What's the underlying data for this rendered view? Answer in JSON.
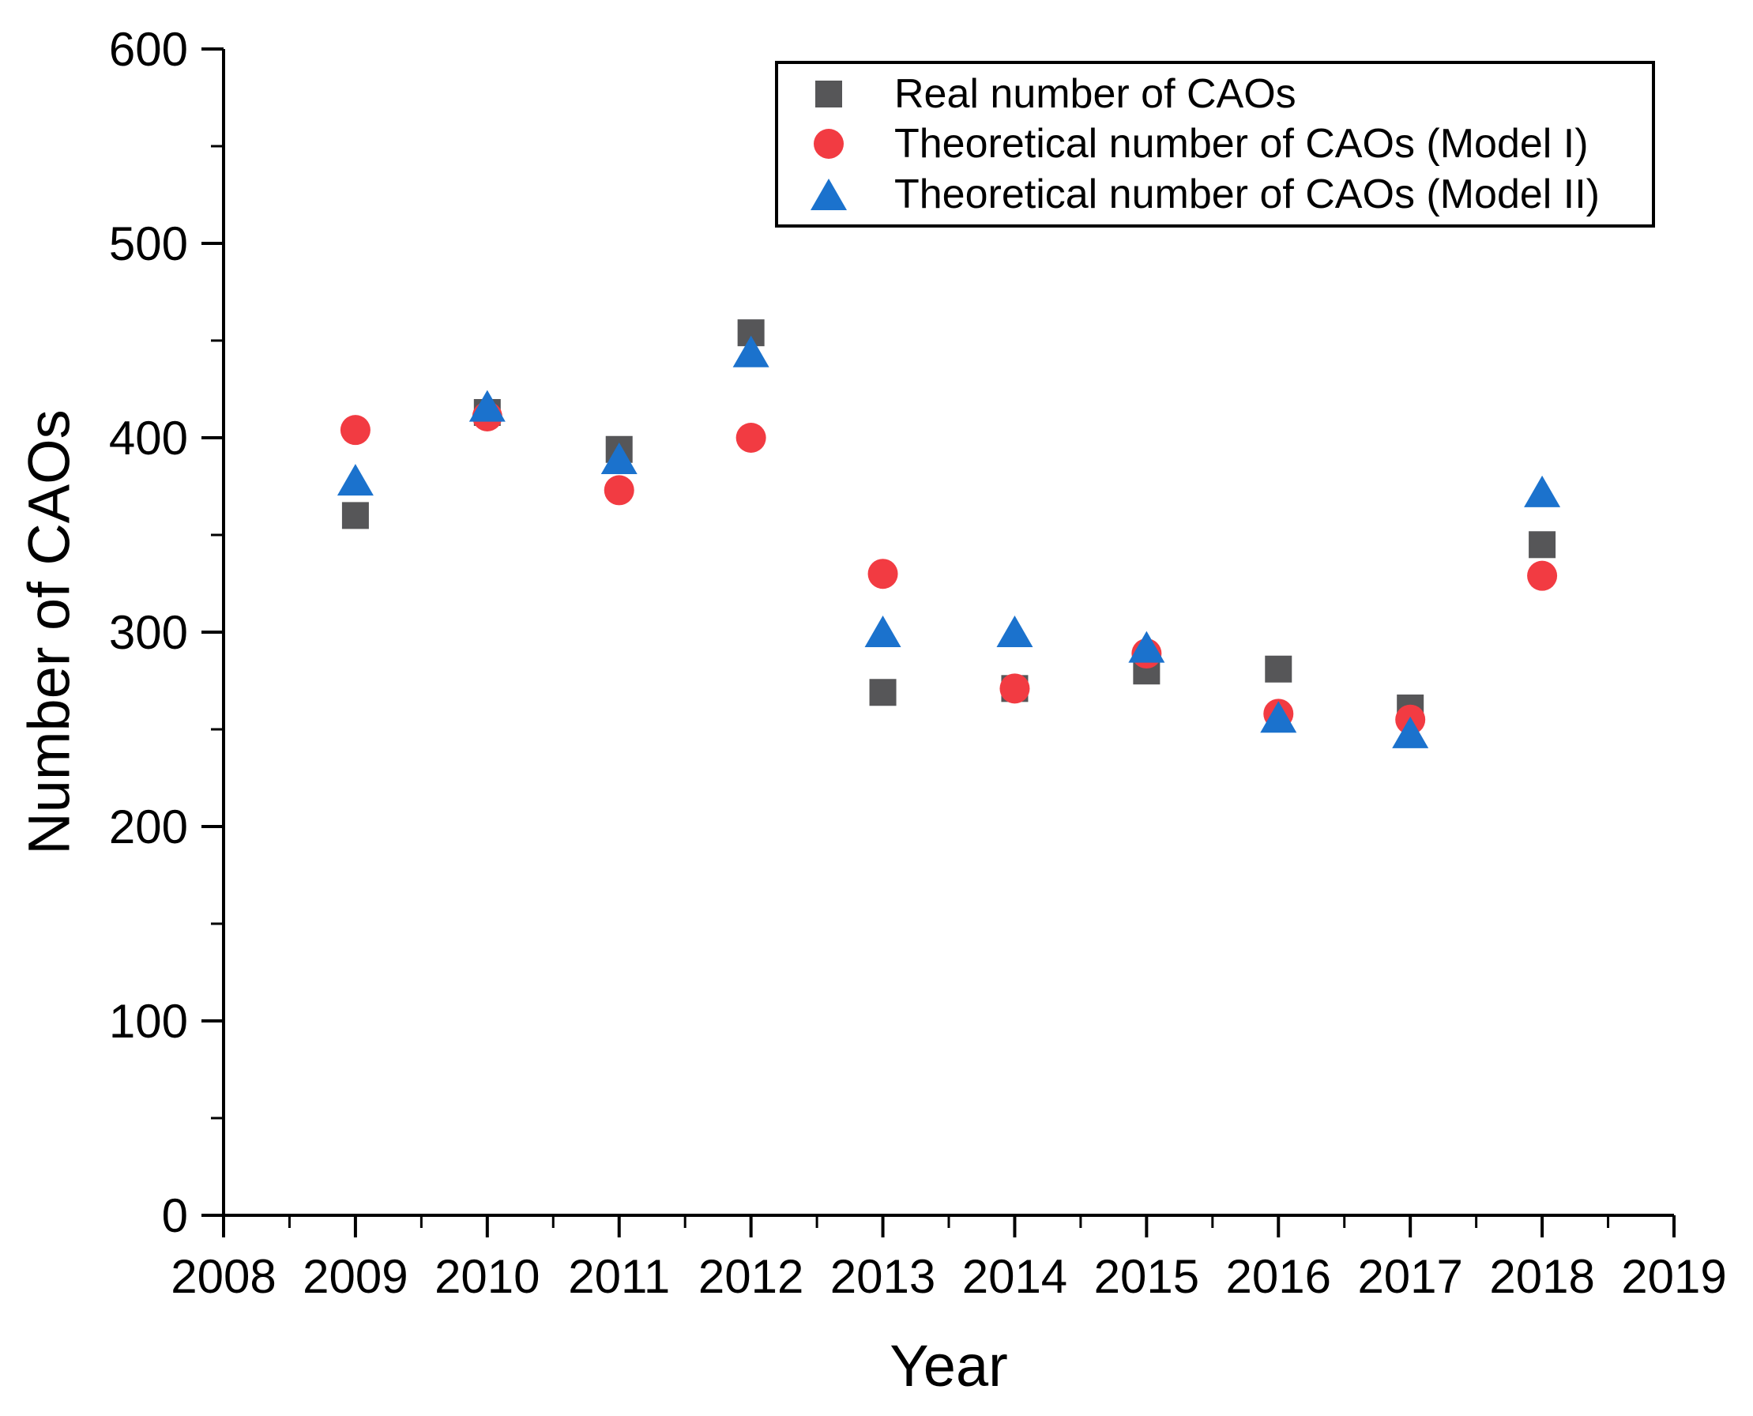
{
  "chart_data": {
    "type": "scatter",
    "title": "",
    "xlabel": "Year",
    "ylabel": "Number of CAOs",
    "xlim": [
      2008,
      2019
    ],
    "ylim": [
      0,
      600
    ],
    "grid": false,
    "legend_position": "top-center-inside",
    "x_tick_labels": [
      "2008",
      "2009",
      "2010",
      "2011",
      "2012",
      "2013",
      "2014",
      "2015",
      "2016",
      "2017",
      "2018",
      "2019"
    ],
    "y_tick_labels": [
      "0",
      "100",
      "200",
      "300",
      "400",
      "500",
      "600"
    ],
    "x_minor_tick_step": 0.5,
    "y_minor_tick_step": 50,
    "x": [
      2009,
      2010,
      2011,
      2012,
      2013,
      2014,
      2015,
      2016,
      2017,
      2018
    ],
    "series": [
      {
        "name": "Real number of CAOs",
        "marker": "square",
        "color": "#565658",
        "values": [
          360,
          413,
          394,
          454,
          269,
          271,
          280,
          281,
          261,
          345
        ]
      },
      {
        "name": "Theoretical number of CAOs (Model I)",
        "marker": "circle",
        "color": "#f23b42",
        "values": [
          404,
          411,
          373,
          400,
          330,
          271,
          289,
          258,
          255,
          329
        ]
      },
      {
        "name": "Theoretical number of CAOs (Model II)",
        "marker": "triangle",
        "color": "#1b72cd",
        "values": [
          378,
          416,
          389,
          444,
          300,
          300,
          292,
          256,
          248,
          372
        ]
      }
    ],
    "axis_color": "#000000",
    "text_color": "#000000"
  }
}
